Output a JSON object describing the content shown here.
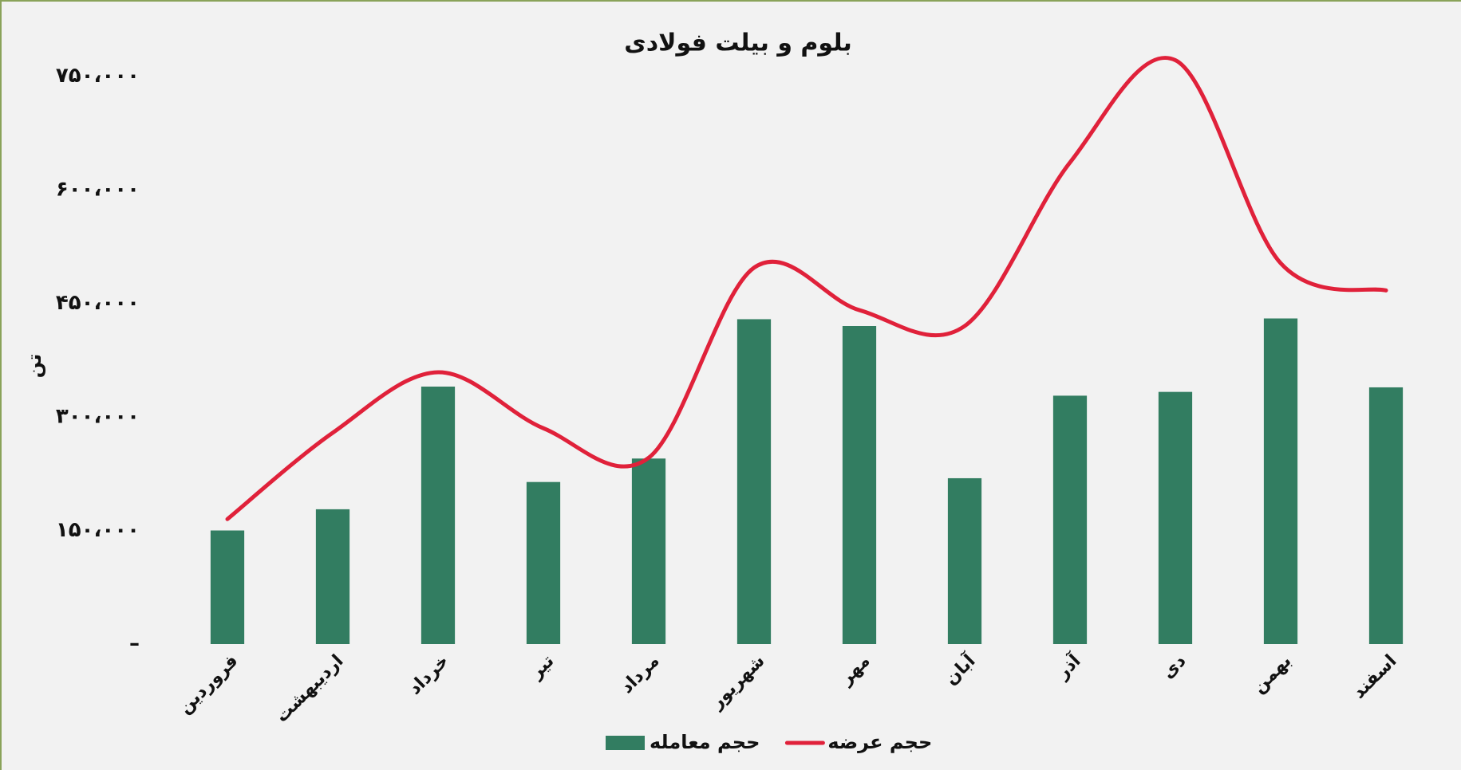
{
  "chart_data": {
    "type": "bar-line",
    "title": "بلوم و بیلت فولادی",
    "y_label": "تن",
    "categories": [
      "فروردین",
      "اردیبهشت",
      "خرداد",
      "تیر",
      "مرداد",
      "شهریور",
      "مهر",
      "آبان",
      "آذر",
      "دی",
      "بهمن",
      "اسفند"
    ],
    "series": [
      {
        "name": "حجم معامله",
        "type": "bar",
        "color": "#327d61",
        "values": [
          150000,
          178000,
          340000,
          214000,
          245000,
          429000,
          420000,
          219000,
          328000,
          333000,
          430000,
          339000
        ]
      },
      {
        "name": "حجم عرضه",
        "type": "line",
        "color": "#e0213a",
        "smooth": true,
        "values": [
          165000,
          279000,
          359000,
          285000,
          246000,
          497000,
          441000,
          420000,
          636000,
          771000,
          503000,
          467000
        ]
      }
    ],
    "ylim": [
      0,
      800000
    ],
    "yticks": [
      {
        "value": 0,
        "label": "–"
      },
      {
        "value": 150000,
        "label": "۱۵۰،۰۰۰"
      },
      {
        "value": 300000,
        "label": "۳۰۰،۰۰۰"
      },
      {
        "value": 450000,
        "label": "۴۵۰،۰۰۰"
      },
      {
        "value": 600000,
        "label": "۶۰۰،۰۰۰"
      },
      {
        "value": 750000,
        "label": "۷۵۰،۰۰۰"
      }
    ],
    "grid": false
  }
}
